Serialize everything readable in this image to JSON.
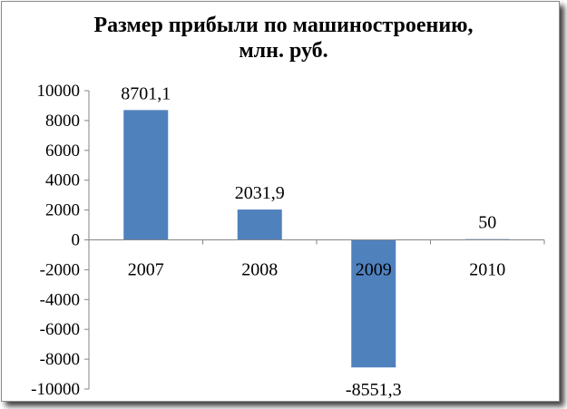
{
  "chart_data": {
    "type": "bar",
    "title_lines": [
      "Размер прибыли по машиностроению,",
      "млн. руб."
    ],
    "categories": [
      "2007",
      "2008",
      "2009",
      "2010"
    ],
    "values": [
      8701.1,
      2031.9,
      -8551.3,
      50
    ],
    "data_labels": [
      "8701,1",
      "2031,9",
      "-8551,3",
      "50"
    ],
    "ylim": [
      -10000,
      10000
    ],
    "yticks": [
      -10000,
      -8000,
      -6000,
      -4000,
      -2000,
      0,
      2000,
      4000,
      6000,
      8000,
      10000
    ],
    "ytick_labels": [
      "-10000",
      "-8000",
      "-6000",
      "-4000",
      "-2000",
      "0",
      "2000",
      "4000",
      "6000",
      "8000",
      "10000"
    ],
    "grid": false,
    "legend": "none",
    "bar_color": "#4f81bd",
    "xlabel": "",
    "ylabel": ""
  }
}
